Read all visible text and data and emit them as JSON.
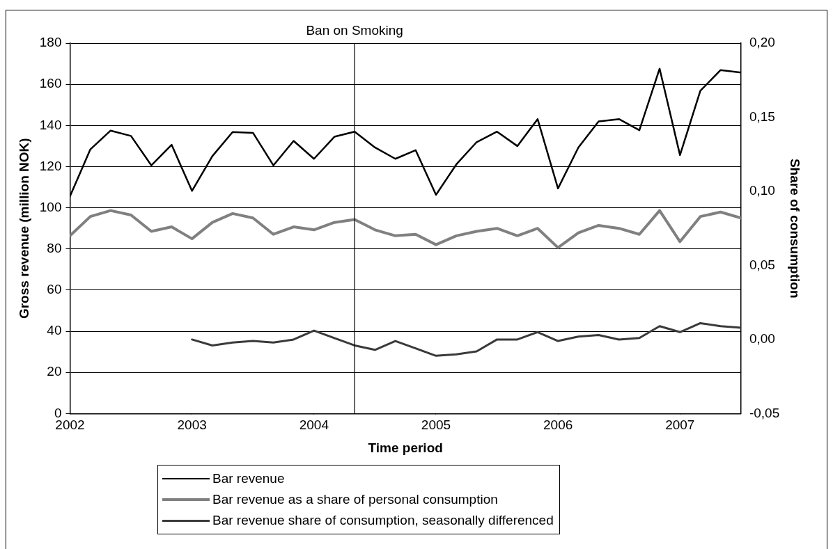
{
  "chart_data": {
    "type": "line",
    "x": [
      2002,
      2002.167,
      2002.333,
      2002.5,
      2002.667,
      2002.833,
      2003,
      2003.167,
      2003.333,
      2003.5,
      2003.667,
      2003.833,
      2004,
      2004.167,
      2004.333,
      2004.5,
      2004.667,
      2004.833,
      2005,
      2005.167,
      2005.333,
      2005.5,
      2005.667,
      2005.833,
      2006,
      2006.167,
      2006.333,
      2006.5,
      2006.667,
      2006.833,
      2007,
      2007.167,
      2007.333,
      2007.5
    ],
    "series": [
      {
        "name": "Bar revenue",
        "color": "#000000",
        "values": [
          105.6,
          128.4,
          137.5,
          134.9,
          120.6,
          130.6,
          108.2,
          125.1,
          136.8,
          136.4,
          120.6,
          132.5,
          123.8,
          134.5,
          137.0,
          129.3,
          123.8,
          128.0,
          106.3,
          121.1,
          131.9,
          137.0,
          130.0,
          143.1,
          109.4,
          129.3,
          142.0,
          143.1,
          137.7,
          167.6,
          125.6,
          156.9,
          166.9,
          165.7
        ]
      },
      {
        "name": "Bar revenue as a share of personal consumption",
        "color": "#808080",
        "axis": "y2",
        "values": [
          0.07,
          0.083,
          0.087,
          0.084,
          0.073,
          0.076,
          0.068,
          0.079,
          0.085,
          0.082,
          0.071,
          0.076,
          0.074,
          0.079,
          0.081,
          0.074,
          0.07,
          0.071,
          0.064,
          0.07,
          0.073,
          0.075,
          0.07,
          0.075,
          0.062,
          0.072,
          0.077,
          0.075,
          0.071,
          0.087,
          0.066,
          0.083,
          0.086,
          0.082
        ]
      },
      {
        "name": "Bar revenue share of consumption, seasonally differenced",
        "color": "#3a3a3a",
        "axis": "y2",
        "values": [
          null,
          null,
          null,
          null,
          null,
          null,
          0.0,
          -0.004,
          -0.002,
          -0.001,
          -0.002,
          0.0,
          0.006,
          0.001,
          -0.004,
          -0.007,
          -0.001,
          -0.006,
          -0.011,
          -0.01,
          -0.008,
          0.0,
          0.0,
          0.005,
          -0.001,
          0.002,
          0.003,
          0.0,
          0.001,
          0.009,
          0.005,
          0.011,
          0.009,
          0.008
        ]
      }
    ],
    "xlabel": "Time period",
    "ylabel": "Gross revenue (million NOK)",
    "y2label": "Share of consumption",
    "xlim": [
      2002,
      2007.5
    ],
    "xticks": [
      2002,
      2003,
      2004,
      2005,
      2006,
      2007
    ],
    "ylim": [
      0,
      180
    ],
    "yticks": [
      0,
      20,
      40,
      60,
      80,
      100,
      120,
      140,
      160,
      180
    ],
    "y2lim": [
      -0.05,
      0.2
    ],
    "y2ticks": [
      {
        "value": -0.05,
        "label": "-0,05"
      },
      {
        "value": 0,
        "label": "0,00"
      },
      {
        "value": 0.05,
        "label": "0,05"
      },
      {
        "value": 0.1,
        "label": "0,10"
      },
      {
        "value": 0.15,
        "label": "0,15"
      },
      {
        "value": 0.2,
        "label": "0,20"
      }
    ],
    "ref_lines": [
      {
        "axis": "x",
        "value": 2004.333,
        "label": "Ban on Smoking",
        "color": "#000000"
      }
    ],
    "grid": "y",
    "legend": "bottom",
    "marker": "none",
    "line_style": "solid"
  }
}
